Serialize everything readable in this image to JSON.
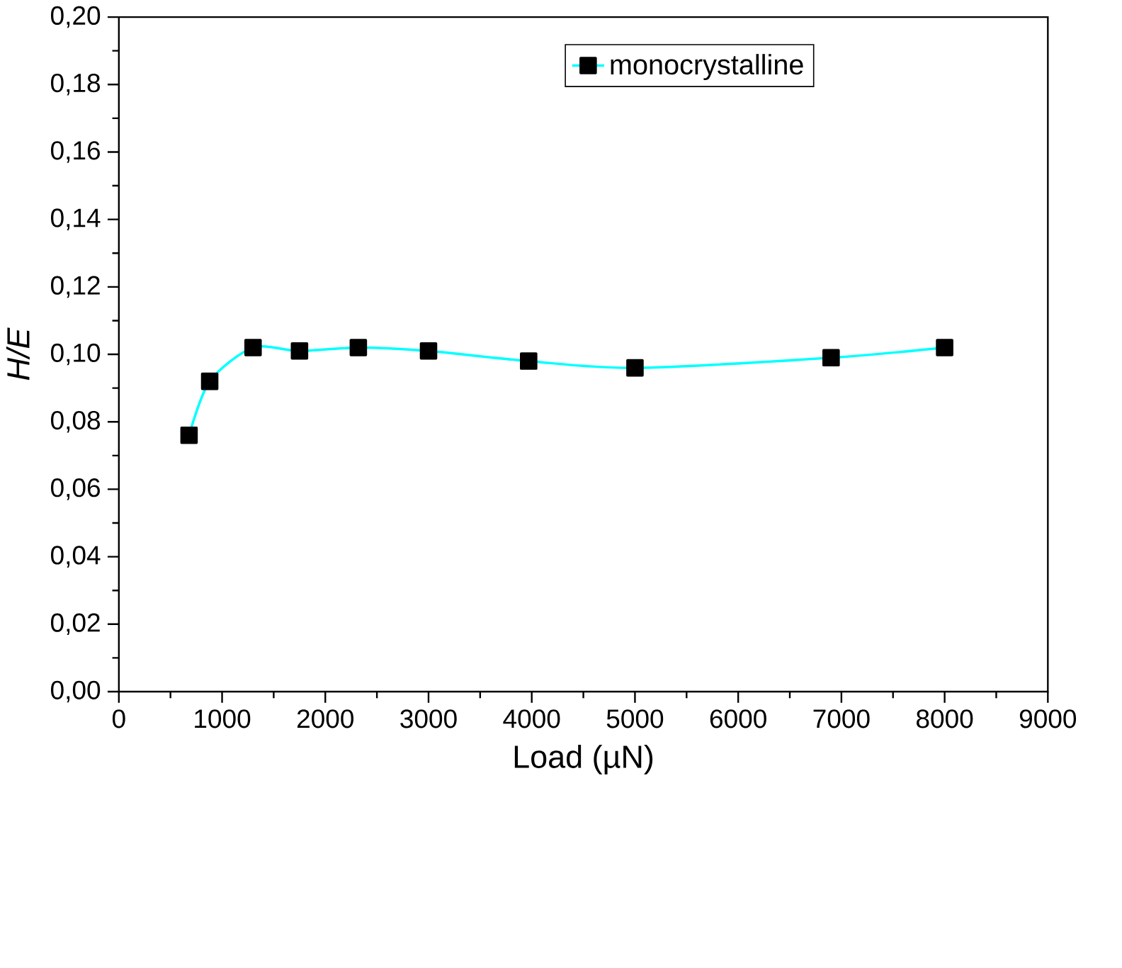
{
  "chart_data": {
    "type": "line",
    "xlabel": "Load (µN)",
    "ylabel": "H/E",
    "x": [
      680,
      880,
      1300,
      1750,
      2320,
      3000,
      3970,
      5000,
      6900,
      8000
    ],
    "series": [
      {
        "name": "monocrystalline",
        "color": "#00ffff",
        "values": [
          0.076,
          0.092,
          0.102,
          0.101,
          0.102,
          0.101,
          0.098,
          0.096,
          0.099,
          0.102
        ]
      }
    ],
    "xlim": [
      0,
      9000
    ],
    "xticks": [
      0,
      1000,
      2000,
      3000,
      4000,
      5000,
      6000,
      7000,
      8000,
      9000
    ],
    "ylim": [
      0,
      0.2
    ],
    "yticks": [
      {
        "value": 0,
        "label": "0,00"
      },
      {
        "value": 0.02,
        "label": "0,02"
      },
      {
        "value": 0.04,
        "label": "0,04"
      },
      {
        "value": 0.06,
        "label": "0,06"
      },
      {
        "value": 0.08,
        "label": "0,08"
      },
      {
        "value": 0.1,
        "label": "0,10"
      },
      {
        "value": 0.12,
        "label": "0,12"
      },
      {
        "value": 0.14,
        "label": "0,14"
      },
      {
        "value": 0.16,
        "label": "0,16"
      },
      {
        "value": 0.18,
        "label": "0,18"
      },
      {
        "value": 0.2,
        "label": "0,20"
      }
    ],
    "marker": "square",
    "line_style": "solid",
    "grid": false,
    "legend": "top right"
  }
}
